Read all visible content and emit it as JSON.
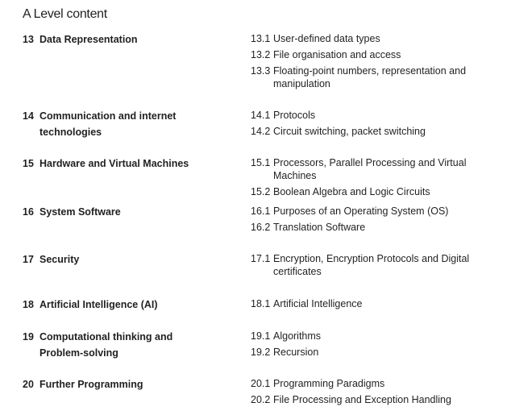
{
  "title": "A Level content",
  "sections": [
    {
      "num": "13",
      "name": "Data Representation",
      "items": [
        {
          "num": "13.1",
          "text": "User-defined data types"
        },
        {
          "num": "13.2",
          "text": "File organisation and access"
        },
        {
          "num": "13.3",
          "text": "Floating-point numbers, representation and manipulation"
        }
      ]
    },
    {
      "num": "14",
      "name": "Communication and internet technologies",
      "items": [
        {
          "num": "14.1",
          "text": "Protocols"
        },
        {
          "num": "14.2",
          "text": "Circuit switching, packet switching"
        }
      ]
    },
    {
      "num": "15",
      "name": "Hardware and Virtual Machines",
      "items": [
        {
          "num": "15.1",
          "text": "Processors, Parallel Processing and Virtual Machines"
        },
        {
          "num": "15.2",
          "text": "Boolean Algebra and Logic Circuits"
        }
      ]
    },
    {
      "num": "16",
      "name": "System Software",
      "items": [
        {
          "num": "16.1",
          "text": "Purposes of an Operating System (OS)"
        },
        {
          "num": "16.2",
          "text": "Translation Software"
        }
      ]
    },
    {
      "num": "17",
      "name": "Security",
      "items": [
        {
          "num": "17.1",
          "text": "Encryption, Encryption Protocols and Digital certificates"
        }
      ]
    },
    {
      "num": "18",
      "name": "Artificial Intelligence (AI)",
      "items": [
        {
          "num": "18.1",
          "text": "Artificial Intelligence"
        }
      ]
    },
    {
      "num": "19",
      "name": "Computational thinking and Problem-solving",
      "items": [
        {
          "num": "19.1",
          "text": "Algorithms"
        },
        {
          "num": "19.2",
          "text": "Recursion"
        }
      ]
    },
    {
      "num": "20",
      "name": "Further Programming",
      "items": [
        {
          "num": "20.1",
          "text": "Programming Paradigms"
        },
        {
          "num": "20.2",
          "text": "File Processing and Exception Handling"
        }
      ]
    }
  ]
}
